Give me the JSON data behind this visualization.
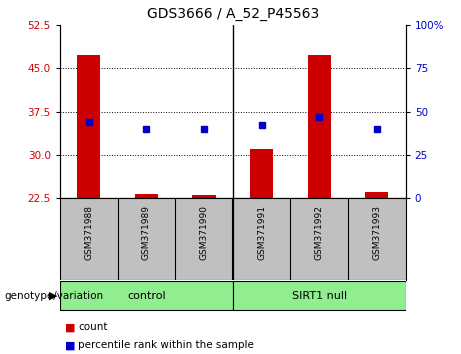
{
  "title": "GDS3666 / A_52_P45563",
  "samples": [
    "GSM371988",
    "GSM371989",
    "GSM371990",
    "GSM371991",
    "GSM371992",
    "GSM371993"
  ],
  "count_values": [
    47.2,
    23.3,
    23.1,
    31.0,
    47.2,
    23.5
  ],
  "percentile_pct": [
    44,
    40,
    40,
    42,
    47,
    40
  ],
  "ylim_left": [
    22.5,
    52.5
  ],
  "yticks_left": [
    22.5,
    30.0,
    37.5,
    45.0,
    52.5
  ],
  "ylim_right": [
    0,
    100
  ],
  "yticks_right": [
    0,
    25,
    50,
    75,
    100
  ],
  "yticklabels_right": [
    "0",
    "25",
    "50",
    "75",
    "100%"
  ],
  "bar_color": "#cc0000",
  "dot_color": "#0000cc",
  "bar_width": 0.4,
  "left_tick_color": "#cc0000",
  "right_tick_color": "#0000cc",
  "grid_color": "#000000",
  "background_color": "#ffffff",
  "sample_box_color": "#c0c0c0",
  "genotype_green": "#90ee90",
  "legend_count_label": "count",
  "legend_percentile_label": "percentile rank within the sample",
  "genotype_label": "genotype/variation",
  "control_label": "control",
  "sirt1_label": "SIRT1 null",
  "n_control": 3,
  "n_sirt1": 3
}
